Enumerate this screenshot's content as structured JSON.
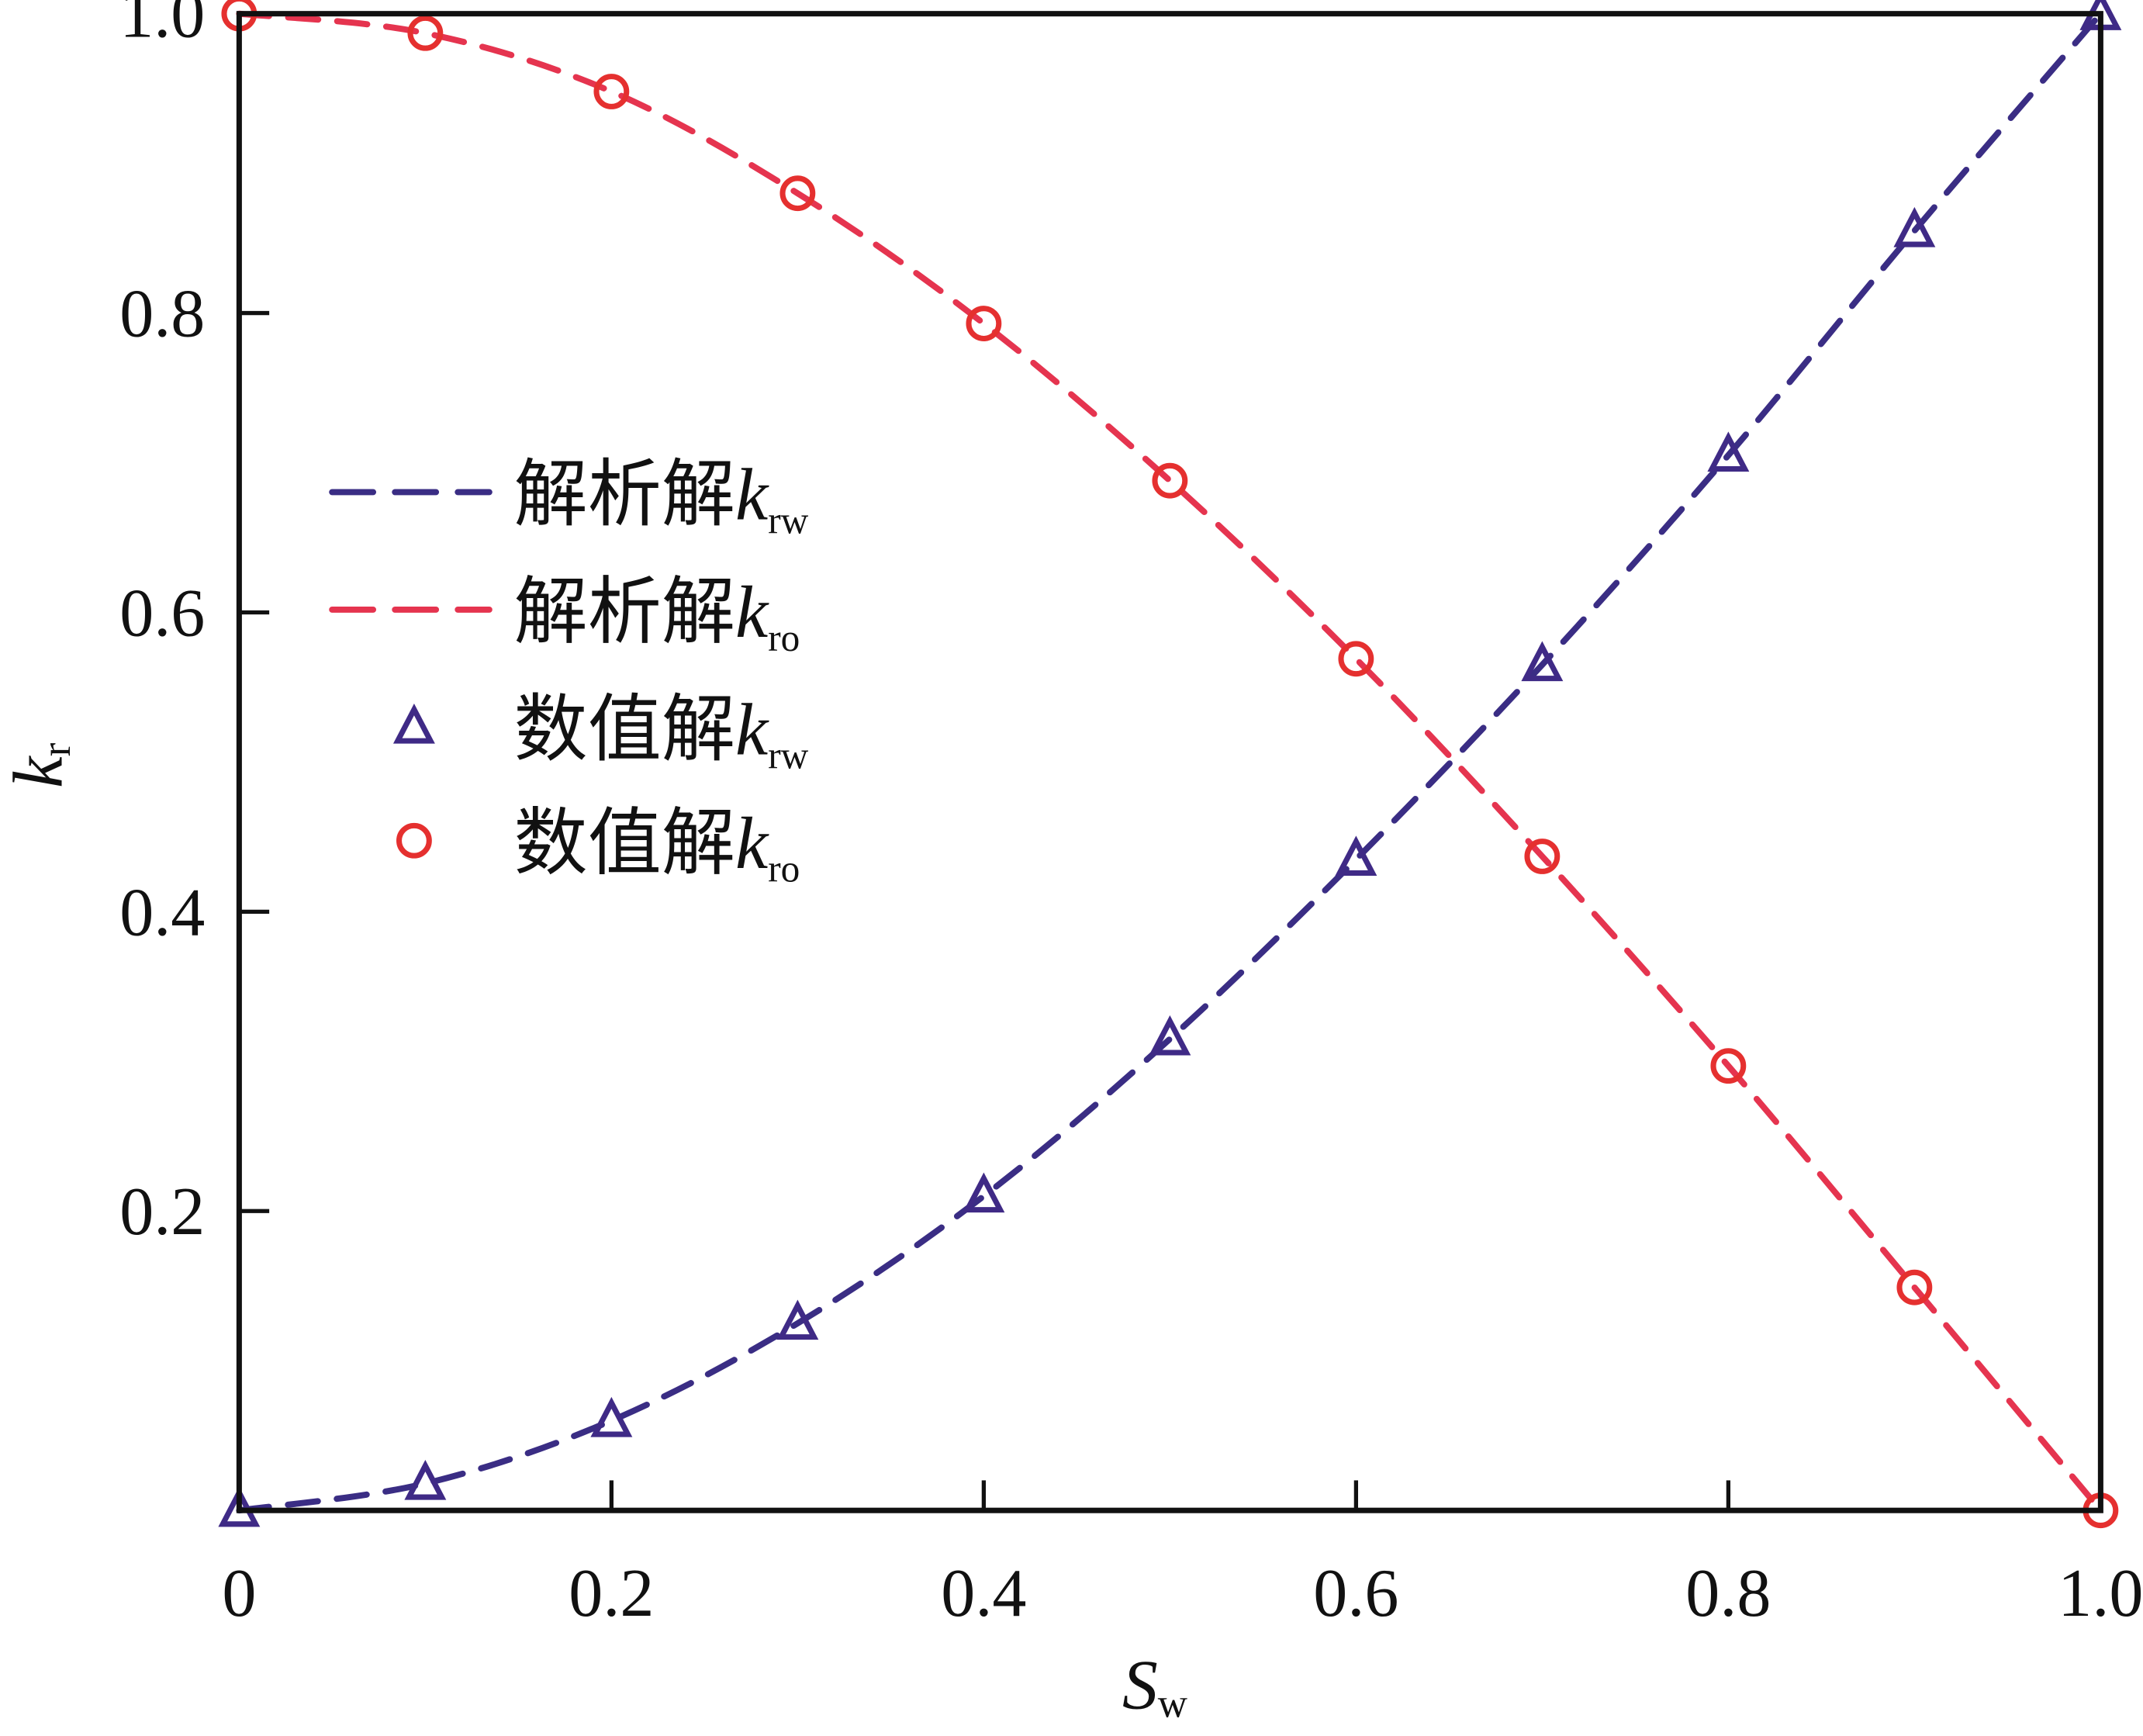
{
  "chart_data": {
    "type": "line",
    "title": "",
    "xlabel": {
      "main": "S",
      "sub": "w"
    },
    "ylabel": {
      "main": "k",
      "sub": "r"
    },
    "xlim": [
      0,
      1.0
    ],
    "ylim": [
      0,
      1.0
    ],
    "x_ticks": [
      0,
      0.2,
      0.4,
      0.6,
      0.8,
      1.0
    ],
    "x_tick_labels": [
      "0",
      "0.2",
      "0.4",
      "0.6",
      "0.8",
      "1.0"
    ],
    "y_ticks": [
      0.2,
      0.4,
      0.6,
      0.8,
      1.0
    ],
    "y_tick_labels": [
      "0.2",
      "0.4",
      "0.6",
      "0.8",
      "1.0"
    ],
    "grid": false,
    "legend_placement": "center-left",
    "x": [
      0,
      0.1,
      0.2,
      0.3,
      0.4,
      0.5,
      0.6,
      0.7,
      0.8,
      0.9,
      1.0
    ],
    "series": [
      {
        "name": "解析解k_rw",
        "label_main": "解析解",
        "label_k": "k",
        "label_sub": "rw",
        "style": "dashed",
        "color": "#3a2d84",
        "values": [
          0,
          0.018,
          0.06,
          0.125,
          0.21,
          0.315,
          0.435,
          0.565,
          0.705,
          0.855,
          1.0
        ]
      },
      {
        "name": "解析解k_ro",
        "label_main": "解析解",
        "label_k": "k",
        "label_sub": "ro",
        "style": "dashed",
        "color": "#e5344f",
        "values": [
          1.0,
          0.987,
          0.948,
          0.88,
          0.793,
          0.688,
          0.569,
          0.437,
          0.297,
          0.149,
          0
        ]
      },
      {
        "name": "数值解k_rw",
        "label_main": "数值解",
        "label_k": "k",
        "label_sub": "rw",
        "style": "triangle-markers",
        "color": "#3f2a86",
        "values": [
          0,
          0.018,
          0.06,
          0.125,
          0.21,
          0.315,
          0.435,
          0.565,
          0.705,
          0.855,
          1.0
        ]
      },
      {
        "name": "数值解k_ro",
        "label_main": "数值解",
        "label_k": "k",
        "label_sub": "ro",
        "style": "circle-markers",
        "color": "#e5302f",
        "values": [
          1.0,
          0.987,
          0.948,
          0.88,
          0.793,
          0.688,
          0.569,
          0.437,
          0.297,
          0.149,
          0
        ]
      }
    ]
  }
}
